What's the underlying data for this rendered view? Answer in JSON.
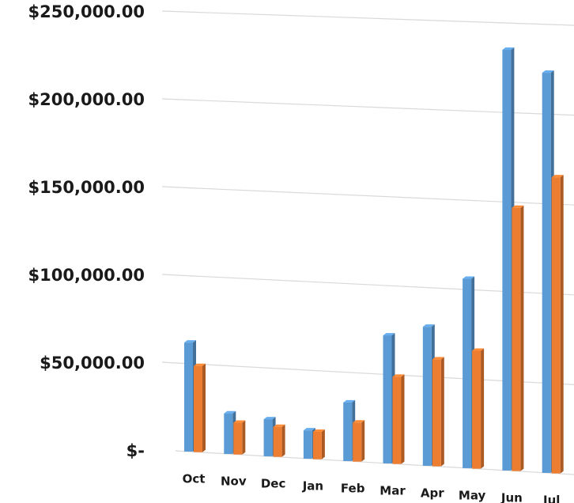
{
  "chart_data": {
    "type": "bar",
    "title": "",
    "xlabel": "",
    "ylabel": "",
    "categories": [
      "Oct",
      "Nov",
      "Dec",
      "Jan",
      "Feb",
      "Mar",
      "Apr",
      "May",
      "Jun",
      "Jul"
    ],
    "series": [
      {
        "color": "#5b9bd5",
        "values": [
          62000,
          23000,
          21000,
          16000,
          33000,
          72000,
          78000,
          106000,
          235000,
          223000
        ]
      },
      {
        "color": "#ed7d31",
        "values": [
          49000,
          18000,
          17000,
          15500,
          22000,
          49000,
          60000,
          66000,
          147000,
          165000
        ]
      }
    ],
    "ylim": [
      0,
      250000
    ],
    "yticks": [
      0,
      50000,
      100000,
      150000,
      200000,
      250000
    ],
    "ytick_labels": [
      "$-",
      "$50,000.00",
      "$100,000.00",
      "$150,000.00",
      "$200,000.00",
      "$250,000.00"
    ],
    "grid": true,
    "legend": "none"
  }
}
